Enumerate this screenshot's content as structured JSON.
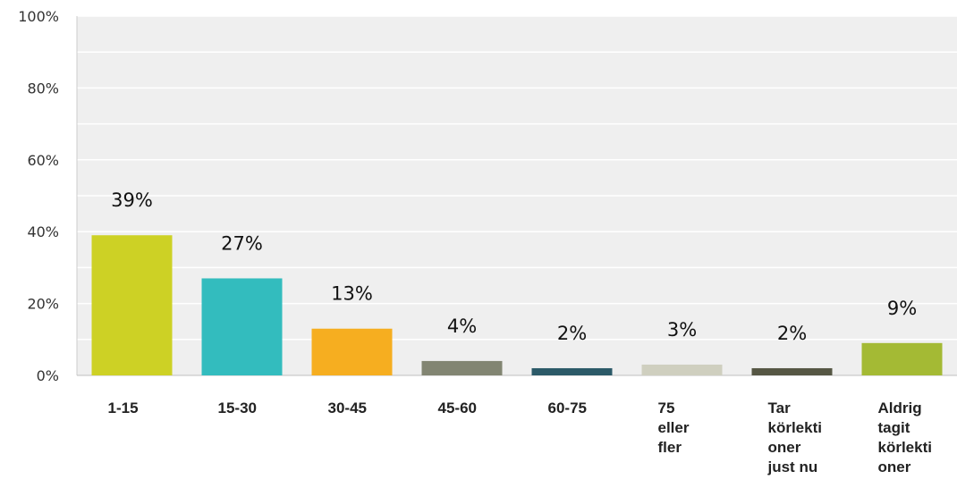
{
  "chart_data": {
    "type": "bar",
    "categories": [
      "1-15",
      "15-30",
      "30-45",
      "45-60",
      "60-75",
      "75 eller fler",
      "Tar körlektioner just nu",
      "Aldrig tagit körlektioner"
    ],
    "category_lines": [
      [
        "1-15"
      ],
      [
        "15-30"
      ],
      [
        "30-45"
      ],
      [
        "45-60"
      ],
      [
        "60-75"
      ],
      [
        "75",
        "eller",
        "fler"
      ],
      [
        "Tar",
        "körlekti",
        "oner",
        "just nu"
      ],
      [
        "Aldrig",
        "tagit",
        "körlekti",
        "oner"
      ]
    ],
    "values": [
      39,
      27,
      13,
      4,
      2,
      3,
      2,
      9
    ],
    "data_labels": [
      "39%",
      "27%",
      "13%",
      "4%",
      "2%",
      "3%",
      "2%",
      "9%"
    ],
    "colors": [
      "#cdd125",
      "#33bcbe",
      "#f6ae20",
      "#828572",
      "#2c5a68",
      "#cfcfbf",
      "#565744",
      "#a4ba34"
    ],
    "ylim": [
      0,
      100
    ],
    "yticks": [
      0,
      20,
      40,
      60,
      80,
      100
    ],
    "ytick_labels": [
      "0%",
      "20%",
      "40%",
      "60%",
      "80%",
      "100%"
    ],
    "title": "",
    "xlabel": "",
    "ylabel": "",
    "grid": true,
    "plot_background": "#efefef",
    "gridline_color": "#ffffff"
  }
}
